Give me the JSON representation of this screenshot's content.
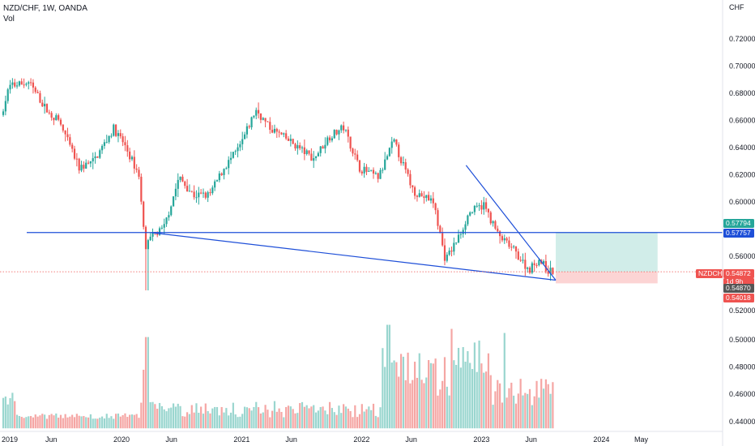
{
  "header": {
    "symbol_line": "NZD/CHF, 1W, OANDA",
    "volume_label": "Vol"
  },
  "price_axis": {
    "currency": "CHF",
    "ticks": [
      "0.72000",
      "0.70000",
      "0.68000",
      "0.66000",
      "0.64000",
      "0.62000",
      "0.60000",
      "0.56000",
      "0.52000",
      "0.50000",
      "0.48000",
      "0.46000",
      "0.44000"
    ]
  },
  "time_axis": {
    "labels": [
      "2019",
      "Jun",
      "2020",
      "Jun",
      "2021",
      "Jun",
      "2022",
      "Jun",
      "2023",
      "Jun",
      "2024",
      "May"
    ]
  },
  "price_tags": {
    "target": {
      "text": "0.57794",
      "color": "#26a69a"
    },
    "horizontal_line": {
      "text": "0.57757",
      "color": "#1e4fd8"
    },
    "symbol": {
      "text": "NZDCHF",
      "color": "#ef5350"
    },
    "last_price": {
      "text": "0.54872",
      "color": "#ef5350"
    },
    "countdown": {
      "text": "1d 9h",
      "color": "#ef5350"
    },
    "entry": {
      "text": "0.54870",
      "color": "#555555"
    },
    "stop": {
      "text": "0.54018",
      "color": "#ef5350"
    }
  },
  "colors": {
    "up": "#26a69a",
    "down": "#ef5350",
    "trendline": "#1e4fd8",
    "target_zone": "#d1ede9",
    "stop_zone": "#fcd4d4",
    "text": "#131722",
    "grid": "#f0f3fa"
  },
  "chart_data": {
    "type": "candlestick",
    "interval": "1W",
    "ylim": [
      0.52,
      0.725
    ],
    "volume_ylim": [
      0.44,
      0.515
    ],
    "anchors": [
      {
        "date": "2019-01-01",
        "price": 0.66
      },
      {
        "date": "2019-02-01",
        "price": 0.685
      },
      {
        "date": "2019-04-01",
        "price": 0.688
      },
      {
        "date": "2019-06-01",
        "price": 0.665
      },
      {
        "date": "2019-07-01",
        "price": 0.66
      },
      {
        "date": "2019-09-01",
        "price": 0.625
      },
      {
        "date": "2019-10-15",
        "price": 0.63
      },
      {
        "date": "2019-12-15",
        "price": 0.654
      },
      {
        "date": "2020-01-15",
        "price": 0.643
      },
      {
        "date": "2020-03-01",
        "price": 0.62
      },
      {
        "date": "2020-03-20",
        "price": 0.565
      },
      {
        "date": "2020-04-10",
        "price": 0.575
      },
      {
        "date": "2020-05-15",
        "price": 0.58
      },
      {
        "date": "2020-07-01",
        "price": 0.618
      },
      {
        "date": "2020-08-15",
        "price": 0.605
      },
      {
        "date": "2020-10-01",
        "price": 0.605
      },
      {
        "date": "2020-11-15",
        "price": 0.625
      },
      {
        "date": "2021-01-01",
        "price": 0.64
      },
      {
        "date": "2021-02-20",
        "price": 0.668
      },
      {
        "date": "2021-04-01",
        "price": 0.655
      },
      {
        "date": "2021-06-01",
        "price": 0.645
      },
      {
        "date": "2021-08-15",
        "price": 0.632
      },
      {
        "date": "2021-10-01",
        "price": 0.648
      },
      {
        "date": "2021-11-15",
        "price": 0.655
      },
      {
        "date": "2022-01-01",
        "price": 0.625
      },
      {
        "date": "2022-03-01",
        "price": 0.618
      },
      {
        "date": "2022-04-15",
        "price": 0.645
      },
      {
        "date": "2022-06-15",
        "price": 0.608
      },
      {
        "date": "2022-08-15",
        "price": 0.6
      },
      {
        "date": "2022-09-20",
        "price": 0.557
      },
      {
        "date": "2022-11-01",
        "price": 0.575
      },
      {
        "date": "2022-12-01",
        "price": 0.592
      },
      {
        "date": "2023-01-15",
        "price": 0.598
      },
      {
        "date": "2023-03-01",
        "price": 0.575
      },
      {
        "date": "2023-04-15",
        "price": 0.565
      },
      {
        "date": "2023-06-01",
        "price": 0.55
      },
      {
        "date": "2023-07-01",
        "price": 0.558
      },
      {
        "date": "2023-08-01",
        "price": 0.549
      }
    ],
    "annotations": {
      "horizontal_line": {
        "price": 0.57757
      },
      "upper_trendline": [
        {
          "date": "2022-11-15",
          "price": 0.627
        },
        {
          "date": "2023-08-15",
          "price": 0.5425
        }
      ],
      "lower_trendline": [
        {
          "date": "2020-04-01",
          "price": 0.5775
        },
        {
          "date": "2023-08-15",
          "price": 0.5425
        }
      ],
      "position": {
        "start": "2023-08-15",
        "end": "2024-06-20",
        "entry": 0.5487,
        "target": 0.57794,
        "stop": 0.54018
      }
    }
  }
}
